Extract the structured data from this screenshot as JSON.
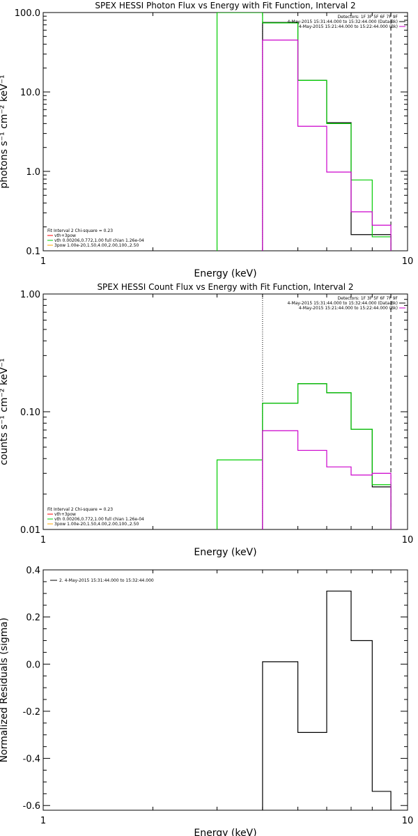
{
  "chart_data": [
    {
      "type": "line",
      "title": "SPEX HESSI Photon Flux vs Energy with Fit Function, Interval 2",
      "xlabel": "Energy (keV)",
      "ylabel": "photons s⁻¹ cm⁻² keV⁻¹",
      "x_scale": "log",
      "y_scale": "log",
      "xlim": [
        1,
        10
      ],
      "ylim": [
        0.1,
        100
      ],
      "x_ticks": [
        1,
        10
      ],
      "x_tick_labels": [
        "1",
        "10"
      ],
      "y_ticks": [
        0.1,
        1,
        10,
        100
      ],
      "y_tick_labels": [
        "0.1",
        "1.0",
        "10.0",
        "100.0"
      ],
      "legend_top": {
        "position": "top-right",
        "entries": [
          {
            "label": "Detectors: 1F 3F 5F 6F 7F 9F",
            "color": "#000000"
          },
          {
            "label": "4-May-2015 15:31:44.000 to 15:32:44.000 (Data-Bk)",
            "color": "#000000"
          },
          {
            "label": "4-May-2015 15:21:44.000 to 15:22:44.000 (Bk)",
            "color": "#cc00cc"
          }
        ]
      },
      "legend_bottom": {
        "position": "bottom-left",
        "entries": [
          {
            "label": "Fit Interval 2   Chi-square = 0.23",
            "color": "#000000"
          },
          {
            "label": "vth+3pow",
            "color": "#ff0000"
          },
          {
            "label": "vth 0.00206,0.772,1.00   full chian 1.26e-04",
            "color": "#00cc00"
          },
          {
            "label": "3pow 1.00e-20,1.50,4.00,2.00,100.,2.50",
            "color": "#ffaa00"
          }
        ]
      },
      "vlines": [
        {
          "x": 4.0,
          "style": "dotted",
          "color": "#000000"
        },
        {
          "x": 9.0,
          "style": "dashed",
          "color": "#000000"
        }
      ],
      "series": [
        {
          "name": "Data-Bk",
          "color": "#000000",
          "edges": [
            4,
            5,
            6,
            7,
            8,
            9
          ],
          "values": [
            75,
            14,
            4.1,
            0.16,
            0.16
          ]
        },
        {
          "name": "vth",
          "color": "#00cc00",
          "edges": [
            3,
            4,
            5,
            6,
            7,
            8,
            9
          ],
          "values": [
            100,
            74,
            14,
            4.0,
            0.78,
            0.15
          ]
        },
        {
          "name": "Bk",
          "color": "#cc00cc",
          "edges": [
            4,
            5,
            6,
            7,
            8,
            9
          ],
          "values": [
            45,
            3.7,
            0.98,
            0.31,
            0.21
          ]
        }
      ]
    },
    {
      "type": "line",
      "title": "SPEX HESSI Count Flux vs Energy with Fit Function, Interval 2",
      "xlabel": "Energy (keV)",
      "ylabel": "counts s⁻¹ cm⁻² keV⁻¹",
      "x_scale": "log",
      "y_scale": "log",
      "xlim": [
        1,
        10
      ],
      "ylim": [
        0.01,
        1
      ],
      "x_ticks": [
        1,
        10
      ],
      "x_tick_labels": [
        "1",
        "10"
      ],
      "y_ticks": [
        0.01,
        0.1,
        1
      ],
      "y_tick_labels": [
        "0.01",
        "0.10",
        "1.00"
      ],
      "legend_top": {
        "position": "top-right",
        "entries": [
          {
            "label": "Detectors: 1F 3F 5F 6F 7F 9F",
            "color": "#000000"
          },
          {
            "label": "4-May-2015 15:31:44.000 to 15:32:44.000 (Data-Bk)",
            "color": "#000000"
          },
          {
            "label": "4-May-2015 15:21:44.000 to 15:22:44.000 (Bk)",
            "color": "#cc00cc"
          }
        ]
      },
      "legend_bottom": {
        "position": "bottom-left",
        "entries": [
          {
            "label": "Fit Interval 2   Chi-square = 0.23",
            "color": "#000000"
          },
          {
            "label": "vth+3pow",
            "color": "#ff0000"
          },
          {
            "label": "vth 0.00206,0.772,1.00   full chian 1.26e-04",
            "color": "#00cc00"
          },
          {
            "label": "3pow 1.00e-20,1.50,4.00,2.00,100.,2.50",
            "color": "#ffaa00"
          }
        ]
      },
      "vlines": [
        {
          "x": 4.0,
          "style": "dotted",
          "color": "#000000"
        },
        {
          "x": 9.0,
          "style": "dashed",
          "color": "#000000"
        }
      ],
      "series": [
        {
          "name": "Data-Bk",
          "color": "#000000",
          "edges": [
            4,
            5,
            6,
            7,
            8,
            9
          ],
          "values": [
            0.118,
            0.173,
            0.145,
            0.071,
            0.023
          ]
        },
        {
          "name": "vth",
          "color": "#00cc00",
          "edges": [
            3,
            4,
            5,
            6,
            7,
            8,
            9
          ],
          "values": [
            0.039,
            0.118,
            0.173,
            0.145,
            0.071,
            0.024
          ]
        },
        {
          "name": "Bk",
          "color": "#cc00cc",
          "edges": [
            4,
            5,
            6,
            7,
            8,
            9
          ],
          "values": [
            0.069,
            0.047,
            0.034,
            0.029,
            0.03
          ]
        }
      ]
    },
    {
      "type": "line",
      "title": "",
      "xlabel": "Energy (keV)",
      "ylabel": "Normalized Residuals (sigma)",
      "x_scale": "log",
      "y_scale": "linear",
      "xlim": [
        1,
        10
      ],
      "ylim": [
        -0.62,
        0.4
      ],
      "x_ticks": [
        1,
        10
      ],
      "x_tick_labels": [
        "1",
        "10"
      ],
      "y_ticks": [
        -0.6,
        -0.4,
        -0.2,
        0.0,
        0.2,
        0.4
      ],
      "y_tick_labels": [
        "-0.6",
        "-0.4",
        "-0.2",
        "0.0",
        "0.2",
        "0.4"
      ],
      "legend_top": {
        "position": "top-left",
        "entries": [
          {
            "label": "2.  4-May-2015 15:31:44.000 to 15:32:44.000",
            "color": "#000000"
          }
        ]
      },
      "legend_bottom": {
        "position": "bottom-left",
        "entries": []
      },
      "vlines": [],
      "series": [
        {
          "name": "Residuals",
          "color": "#000000",
          "edges": [
            4,
            5,
            6,
            7,
            8,
            9
          ],
          "values": [
            0.01,
            -0.29,
            0.31,
            0.1,
            -0.54
          ]
        }
      ]
    }
  ]
}
